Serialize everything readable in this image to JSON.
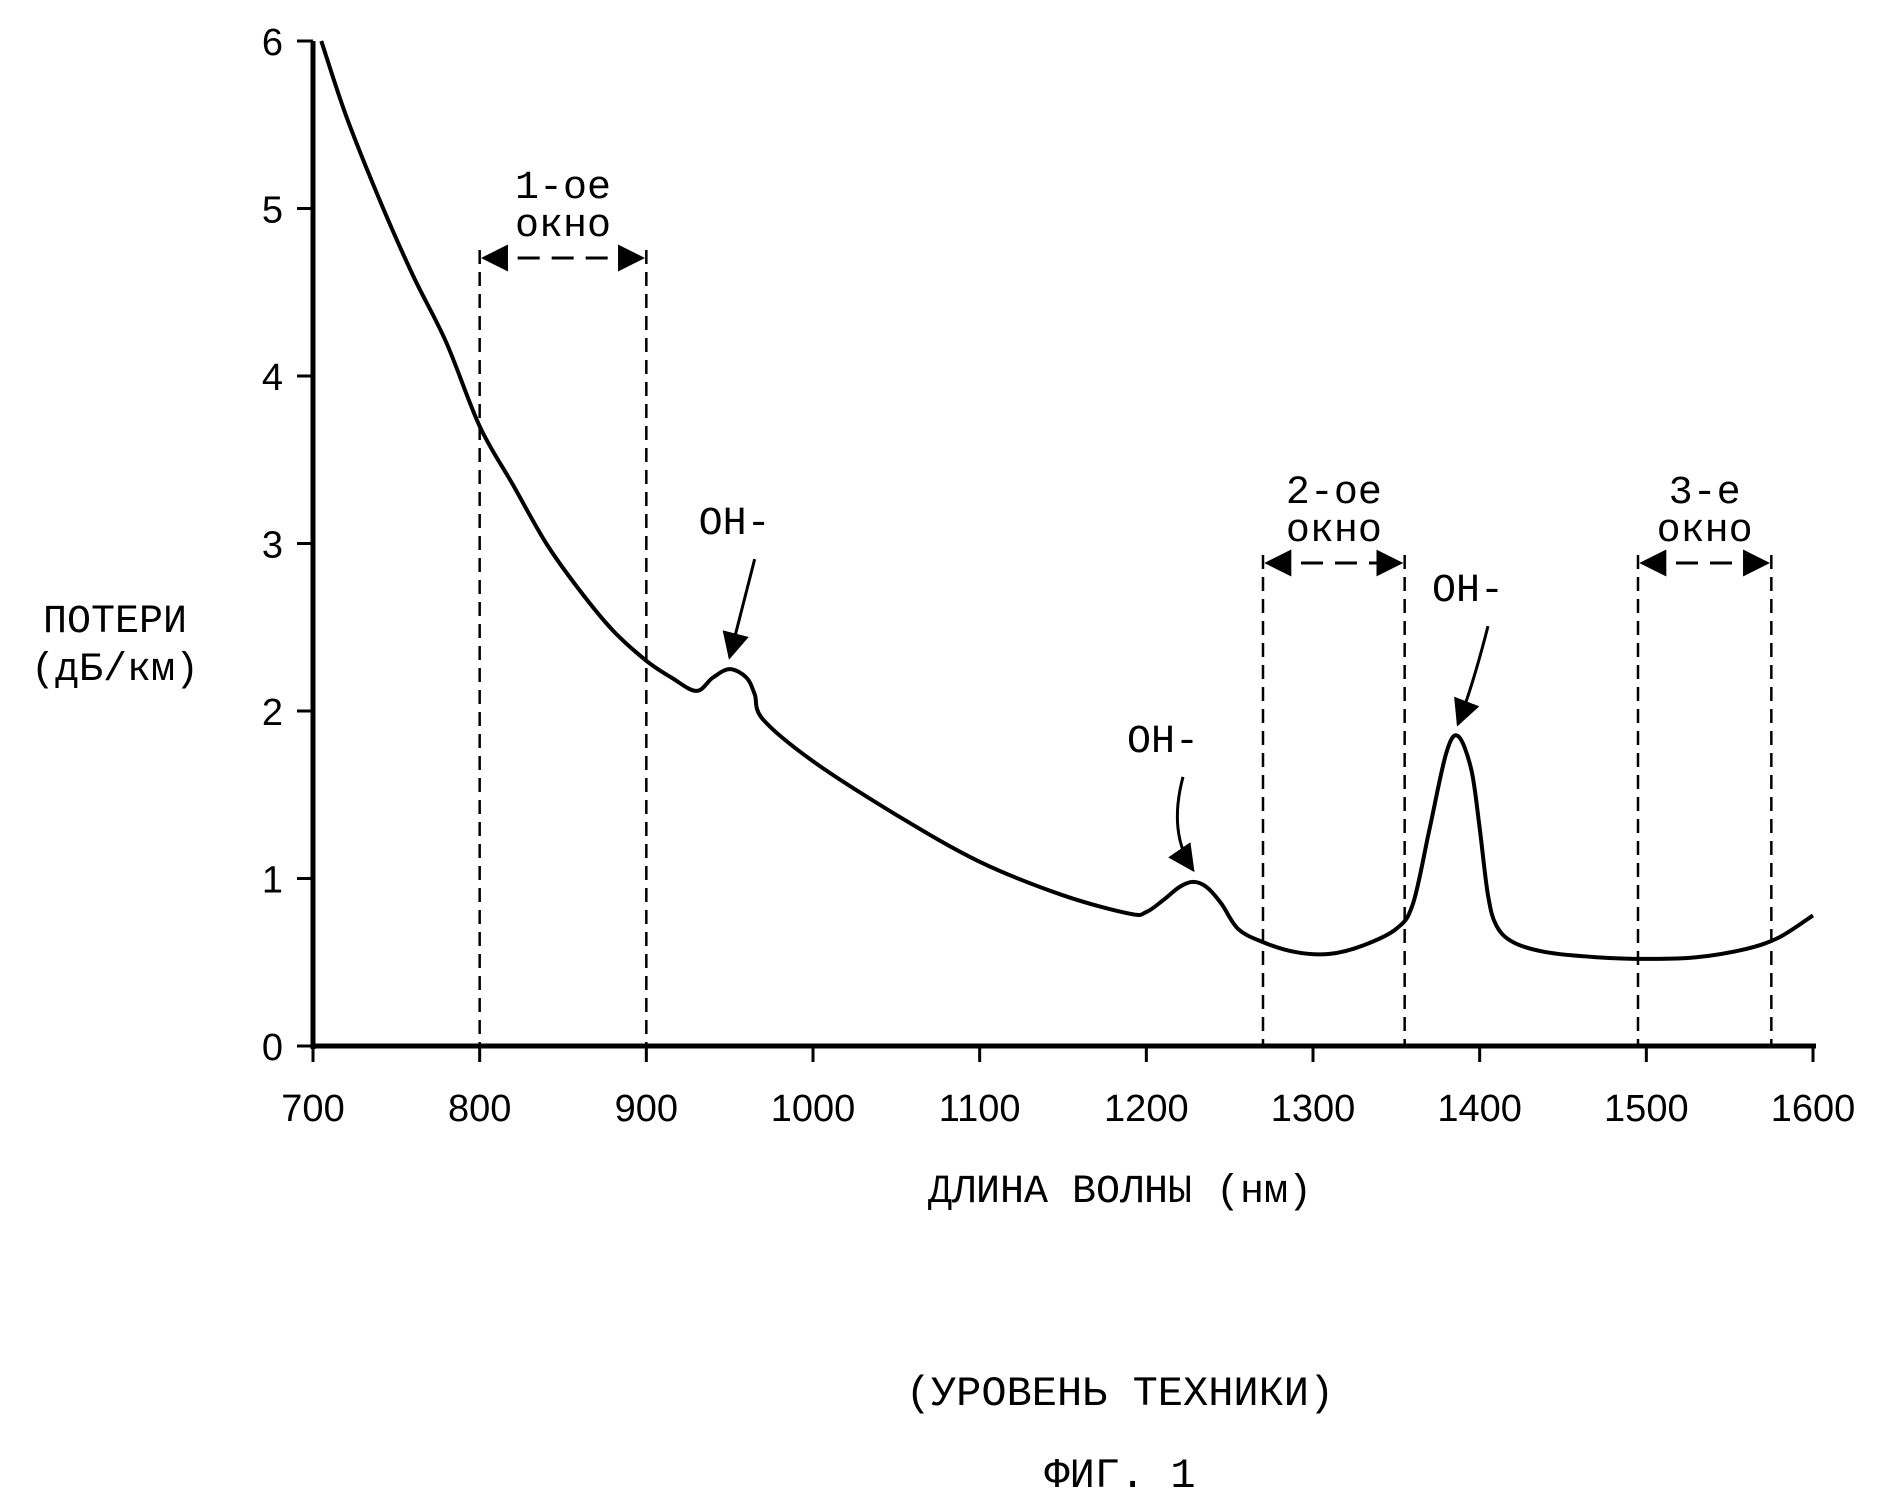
{
  "chart_data": {
    "type": "line",
    "xlabel": "ДЛИНА ВОЛНЫ (нм)",
    "ylabel_lines": [
      "ПОТЕРИ",
      "(дБ/км)"
    ],
    "xlim": [
      700,
      1600
    ],
    "ylim": [
      0,
      6
    ],
    "x_ticks": [
      700,
      800,
      900,
      1000,
      1100,
      1200,
      1300,
      1400,
      1500,
      1600
    ],
    "y_ticks": [
      0,
      1,
      2,
      3,
      4,
      5,
      6
    ],
    "grid": false,
    "series": [
      {
        "x": [
          705,
          720,
          740,
          760,
          780,
          800,
          820,
          840,
          860,
          880,
          900,
          915,
          930,
          940,
          950,
          960,
          965,
          970,
          1000,
          1050,
          1100,
          1150,
          1190,
          1200,
          1210,
          1220,
          1228,
          1236,
          1245,
          1255,
          1270,
          1290,
          1310,
          1330,
          1350,
          1360,
          1370,
          1380,
          1387,
          1395,
          1400,
          1405,
          1410,
          1420,
          1440,
          1470,
          1500,
          1530,
          1560,
          1580,
          1600
        ],
        "y": [
          6.0,
          5.55,
          5.05,
          4.6,
          4.2,
          3.7,
          3.35,
          3.0,
          2.72,
          2.48,
          2.3,
          2.2,
          2.12,
          2.2,
          2.25,
          2.2,
          2.1,
          1.95,
          1.7,
          1.38,
          1.1,
          0.9,
          0.79,
          0.8,
          0.87,
          0.95,
          0.98,
          0.95,
          0.85,
          0.7,
          0.62,
          0.56,
          0.55,
          0.6,
          0.7,
          0.85,
          1.3,
          1.75,
          1.85,
          1.65,
          1.3,
          0.9,
          0.72,
          0.62,
          0.56,
          0.53,
          0.52,
          0.53,
          0.58,
          0.65,
          0.78
        ]
      }
    ],
    "windows": [
      {
        "label_lines": [
          "1-ое",
          "окно"
        ],
        "x_start": 800,
        "x_end": 900
      },
      {
        "label_lines": [
          "2-ое",
          "окно"
        ],
        "x_start": 1270,
        "x_end": 1355
      },
      {
        "label_lines": [
          "3-е",
          "окно"
        ],
        "x_start": 1495,
        "x_end": 1575
      }
    ],
    "annotations": [
      {
        "text": "OH-",
        "target_x": 950,
        "target_y": 2.25
      },
      {
        "text": "OH-",
        "target_x": 1228,
        "target_y": 0.98
      },
      {
        "text": "OH-",
        "target_x": 1387,
        "target_y": 1.85
      }
    ]
  },
  "caption": {
    "line1": "(УРОВЕНЬ ТЕХНИКИ)",
    "line2": "ФИГ. 1"
  }
}
